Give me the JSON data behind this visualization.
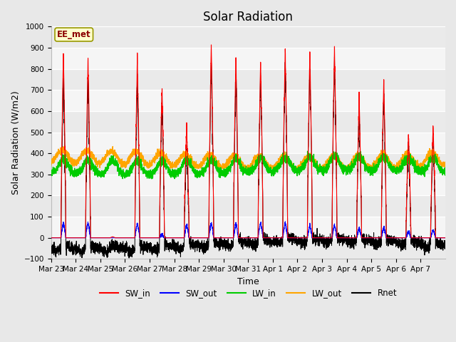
{
  "title": "Solar Radiation",
  "xlabel": "Time",
  "ylabel": "Solar Radiation (W/m2)",
  "ylim": [
    -100,
    1000
  ],
  "yticks": [
    -100,
    0,
    100,
    200,
    300,
    400,
    500,
    600,
    700,
    800,
    900,
    1000
  ],
  "annotation": "EE_met",
  "x_tick_labels": [
    "Mar 23",
    "Mar 24",
    "Mar 25",
    "Mar 26",
    "Mar 27",
    "Mar 28",
    "Mar 29",
    "Mar 30",
    "Mar 31",
    "Apr 1",
    "Apr 2",
    "Apr 3",
    "Apr 4",
    "Apr 5",
    "Apr 6",
    "Apr 7"
  ],
  "legend_colors": [
    "#ff0000",
    "#0000ff",
    "#00cc00",
    "#ffa500",
    "#000000"
  ],
  "legend_labels": [
    "SW_in",
    "SW_out",
    "LW_in",
    "LW_out",
    "Rnet"
  ],
  "fig_facecolor": "#e8e8e8",
  "ax_facecolor": "#f5f5f5",
  "grid_color": "#ffffff",
  "n_days": 16,
  "pts_per_day": 288,
  "SW_in_peaks": [
    870,
    855,
    5,
    850,
    700,
    530,
    915,
    850,
    840,
    895,
    870,
    898,
    650,
    748,
    490,
    530
  ],
  "SW_out_peaks": [
    75,
    72,
    0,
    68,
    15,
    65,
    72,
    70,
    72,
    72,
    58,
    62,
    48,
    52,
    32,
    38
  ],
  "title_fontsize": 12,
  "tick_fontsize": 7.5,
  "ylabel_fontsize": 9,
  "xlabel_fontsize": 9,
  "legend_fontsize": 8.5
}
